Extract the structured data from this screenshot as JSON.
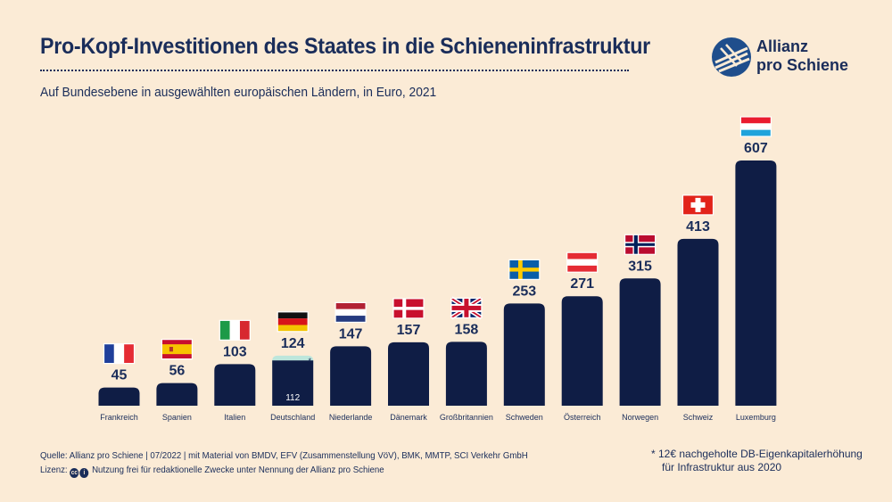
{
  "header": {
    "title": "Pro-Kopf-Investitionen des Staates in die Schieneninfrastruktur",
    "subtitle": "Auf Bundesebene in ausgewählten europäischen Ländern, in Euro, 2021"
  },
  "logo": {
    "line1": "Allianz",
    "line2": "pro Schiene"
  },
  "chart_data": {
    "type": "bar",
    "title": "Pro-Kopf-Investitionen des Staates in die Schieneninfrastruktur",
    "subtitle": "Auf Bundesebene in ausgewählten europäischen Ländern, in Euro, 2021",
    "categories": [
      "Frankreich",
      "Spanien",
      "Italien",
      "Deutschland",
      "Niederlande",
      "Dänemark",
      "Großbritannien",
      "Schweden",
      "Österreich",
      "Norwegen",
      "Schweiz",
      "Luxemburg"
    ],
    "values": [
      45,
      56,
      103,
      124,
      147,
      157,
      158,
      253,
      271,
      315,
      413,
      607
    ],
    "flags": [
      "france",
      "spain",
      "italy",
      "germany",
      "netherlands",
      "denmark",
      "uk",
      "sweden",
      "austria",
      "norway",
      "switzerland",
      "luxembourg"
    ],
    "stacked_note": {
      "category": "Deutschland",
      "base_value": 112,
      "base_label": "112",
      "extra_value": 12,
      "marker": "*"
    },
    "ylim": [
      0,
      620
    ],
    "grid": false,
    "colors": {
      "bar": "#0f1d45",
      "highlight": "#bde6dc",
      "text": "#1a2d5a",
      "background": "#fbebd6"
    }
  },
  "footer": {
    "source": "Quelle: Allianz pro Schiene | 07/2022 | mit Material von BMDV, EFV (Zusammenstellung VöV), BMK, MMTP, SCI Verkehr GmbH",
    "license_label": "Lizenz:",
    "license_text": "Nutzung frei für redaktionelle Zwecke unter Nennung der Allianz pro Schiene",
    "footnote_line1": "* 12€ nachgeholte DB-Eigenkapitalerhöhung",
    "footnote_line2": "für Infrastruktur aus 2020"
  }
}
